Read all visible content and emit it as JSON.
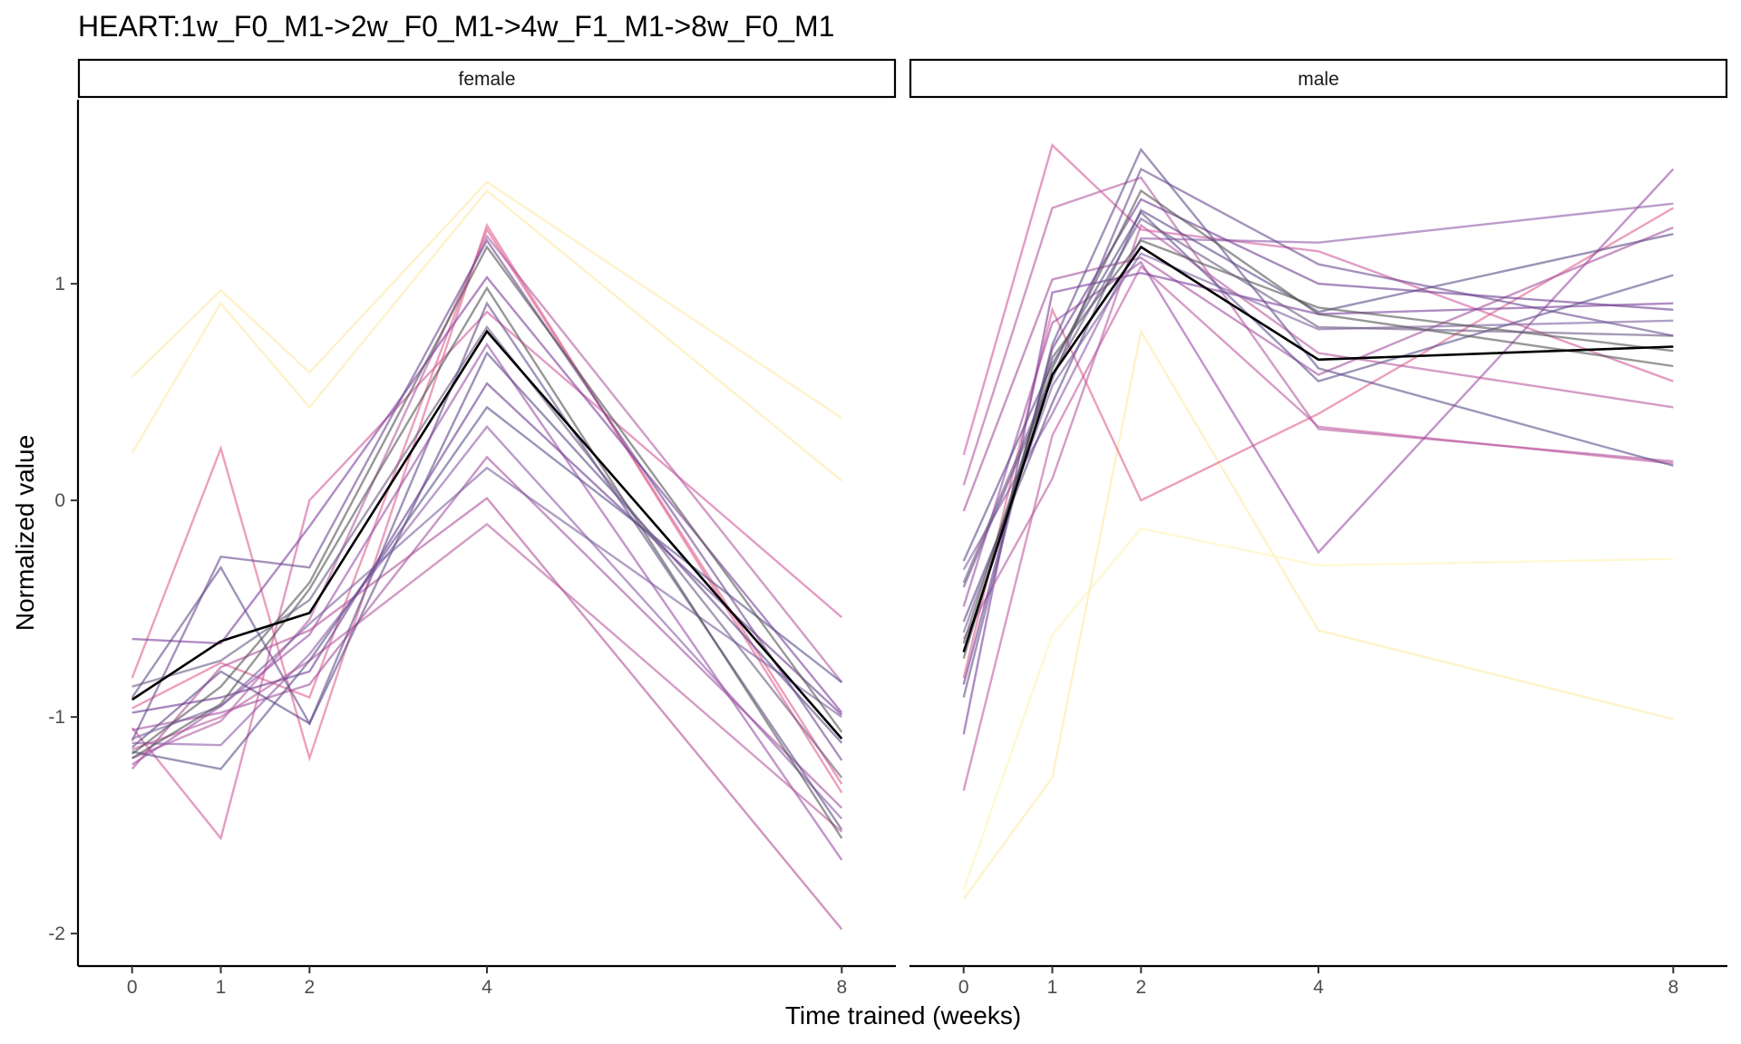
{
  "chart_data": {
    "type": "line",
    "title": "HEART:1w_F0_M1->2w_F0_M1->4w_F1_M1->8w_F0_M1",
    "xlabel": "Time trained (weeks)",
    "ylabel": "Normalized value",
    "x": [
      0,
      1,
      2,
      4,
      8
    ],
    "xticks": [
      "0",
      "1",
      "2",
      "4",
      "8"
    ],
    "yticks": [
      "-2",
      "-1",
      "0",
      "1"
    ],
    "ytick_values": [
      -2,
      -1,
      0,
      1
    ],
    "ylim": [
      -2.15,
      1.85
    ],
    "grid": false,
    "panels": [
      {
        "label": "female",
        "mean": [
          -0.92,
          -0.65,
          -0.52,
          0.78,
          -1.1
        ],
        "series": [
          {
            "color": "#fde9a6",
            "values": [
              0.57,
              0.97,
              0.59,
              1.47,
              0.38
            ]
          },
          {
            "color": "#fde9a6",
            "values": [
              0.22,
              0.91,
              0.43,
              1.43,
              0.09
            ]
          },
          {
            "color": "#e0608f",
            "values": [
              -0.82,
              0.24,
              -1.19,
              1.27,
              -1.35
            ]
          },
          {
            "color": "#e0608f",
            "values": [
              -0.96,
              -0.75,
              -0.91,
              1.25,
              -1.31
            ]
          },
          {
            "color": "#d05a9c",
            "values": [
              -1.05,
              -1.56,
              0.0,
              0.87,
              -0.54
            ]
          },
          {
            "color": "#b25aa0",
            "values": [
              -1.19,
              -1.02,
              -0.55,
              1.22,
              -0.84
            ]
          },
          {
            "color": "#9a4ea6",
            "values": [
              -1.22,
              -0.95,
              -0.62,
              0.72,
              -1.66
            ]
          },
          {
            "color": "#8e5aa8",
            "values": [
              -1.12,
              -1.13,
              -0.71,
              0.34,
              -1.47
            ]
          },
          {
            "color": "#a3509f",
            "values": [
              -1.06,
              -0.98,
              -0.85,
              0.2,
              -1.42
            ]
          },
          {
            "color": "#b04e98",
            "values": [
              -1.24,
              -0.77,
              -0.6,
              0.01,
              -1.98
            ]
          },
          {
            "color": "#b85a9e",
            "values": [
              -1.15,
              -1.0,
              -0.74,
              -0.11,
              -1.53
            ]
          },
          {
            "color": "#7b3e9c",
            "values": [
              -0.64,
              -0.66,
              -0.12,
              1.03,
              -0.98
            ]
          },
          {
            "color": "#6a4a8e",
            "values": [
              -1.11,
              -0.26,
              -0.31,
              1.2,
              -1.2
            ]
          },
          {
            "color": "#604d8a",
            "values": [
              -0.91,
              -0.31,
              -1.03,
              0.91,
              -1.52
            ]
          },
          {
            "color": "#5c4a86",
            "values": [
              -1.14,
              -0.79,
              -1.03,
              0.68,
              -1.12
            ]
          },
          {
            "color": "#6b3c8f",
            "values": [
              -0.98,
              -0.91,
              -0.79,
              0.54,
              -0.99
            ]
          },
          {
            "color": "#5a4f8c",
            "values": [
              -1.16,
              -1.24,
              -0.74,
              0.43,
              -0.84
            ]
          },
          {
            "color": "#7a5f9e",
            "values": [
              -1.1,
              -0.95,
              -0.57,
              0.15,
              -1.0
            ]
          },
          {
            "color": "#545454",
            "values": [
              -1.19,
              -0.94,
              -0.41,
              0.98,
              -1.56
            ]
          },
          {
            "color": "#545454",
            "values": [
              -1.17,
              -0.86,
              -0.38,
              1.17,
              -1.07
            ]
          },
          {
            "color": "#6a5a80",
            "values": [
              -0.86,
              -0.74,
              -0.46,
              0.8,
              -1.28
            ]
          }
        ]
      },
      {
        "label": "male",
        "mean": [
          -0.7,
          0.58,
          1.17,
          0.65,
          0.71
        ],
        "series": [
          {
            "color": "#fde9a6",
            "values": [
              -1.84,
              -1.28,
              0.78,
              -0.6,
              -1.01
            ]
          },
          {
            "color": "#fef3b5",
            "values": [
              -1.8,
              -0.62,
              -0.13,
              -0.3,
              -0.27
            ]
          },
          {
            "color": "#e0608f",
            "values": [
              -0.82,
              0.88,
              0.0,
              0.4,
              1.35
            ]
          },
          {
            "color": "#d05a9c",
            "values": [
              0.21,
              1.64,
              1.25,
              1.15,
              0.55
            ]
          },
          {
            "color": "#b25aa0",
            "values": [
              0.07,
              1.35,
              1.49,
              0.33,
              0.18
            ]
          },
          {
            "color": "#c25aa0",
            "values": [
              -1.34,
              0.3,
              1.08,
              0.34,
              0.17
            ]
          },
          {
            "color": "#9a4ea6",
            "values": [
              -0.49,
              0.82,
              1.1,
              -0.24,
              1.53
            ]
          },
          {
            "color": "#a3509f",
            "values": [
              -0.05,
              1.02,
              1.12,
              0.58,
              1.26
            ]
          },
          {
            "color": "#8e5aa8",
            "values": [
              -0.32,
              0.4,
              1.21,
              1.19,
              1.37
            ]
          },
          {
            "color": "#7b3e9c",
            "values": [
              -1.08,
              0.96,
              1.05,
              0.86,
              0.91
            ]
          },
          {
            "color": "#b85a9e",
            "values": [
              -0.64,
              0.1,
              1.27,
              0.68,
              0.43
            ]
          },
          {
            "color": "#6a4a8e",
            "values": [
              -0.4,
              0.56,
              1.53,
              1.09,
              0.76
            ]
          },
          {
            "color": "#604d8a",
            "values": [
              -0.91,
              0.72,
              1.62,
              0.61,
              0.16
            ]
          },
          {
            "color": "#5c4a86",
            "values": [
              -0.56,
              0.45,
              1.34,
              0.87,
              1.23
            ]
          },
          {
            "color": "#5a4f8c",
            "values": [
              -0.28,
              0.63,
              1.33,
              0.55,
              1.04
            ]
          },
          {
            "color": "#6b3c8f",
            "values": [
              -0.85,
              0.7,
              1.39,
              1.0,
              0.88
            ]
          },
          {
            "color": "#7a5f9e",
            "values": [
              -0.61,
              0.53,
              1.14,
              0.79,
              0.83
            ]
          },
          {
            "color": "#545454",
            "values": [
              -0.66,
              0.61,
              1.43,
              0.86,
              0.62
            ]
          },
          {
            "color": "#545454",
            "values": [
              -0.73,
              0.66,
              1.2,
              0.89,
              0.69
            ]
          },
          {
            "color": "#6a5a80",
            "values": [
              -0.38,
              0.58,
              1.3,
              0.8,
              0.76
            ]
          }
        ]
      }
    ]
  }
}
